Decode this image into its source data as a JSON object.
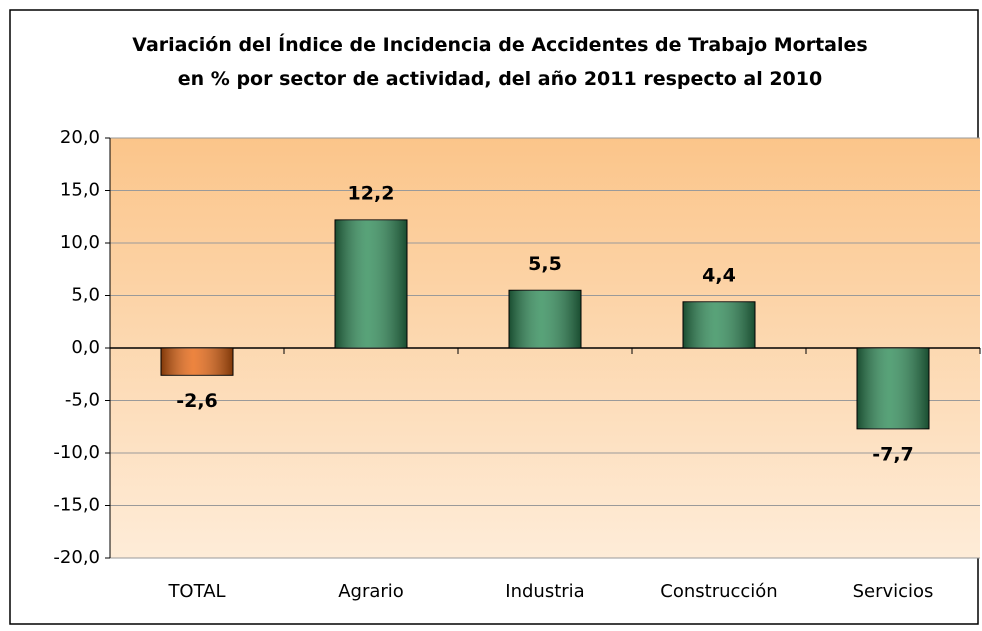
{
  "chart_data": {
    "type": "bar",
    "title": "Variación del Índice de Incidencia de Accidentes de Trabajo Mortales en % por sector de actividad, del año 2011 respecto al 2010",
    "categories": [
      "TOTAL",
      "Agrario",
      "Industria",
      "Construcción",
      "Servicios"
    ],
    "values": [
      -2.6,
      12.2,
      5.5,
      4.4,
      -7.7
    ],
    "value_labels": [
      "-2,6",
      "12,2",
      "5,5",
      "4,4",
      "-7,7"
    ],
    "colors": [
      "#e8650f",
      "#2e8b57",
      "#2e8b57",
      "#2e8b57",
      "#2e8b57"
    ],
    "ylim": [
      -20,
      20
    ],
    "yticks": [
      {
        "value": -20,
        "label": "-20,0"
      },
      {
        "value": -15,
        "label": "-15,0"
      },
      {
        "value": -10,
        "label": "-10,0"
      },
      {
        "value": -5,
        "label": "-5,0"
      },
      {
        "value": 0,
        "label": "0,0"
      },
      {
        "value": 5,
        "label": "5,0"
      },
      {
        "value": 10,
        "label": "10,0"
      },
      {
        "value": 15,
        "label": "15,0"
      },
      {
        "value": 20,
        "label": "20,0"
      }
    ],
    "grid": true
  }
}
